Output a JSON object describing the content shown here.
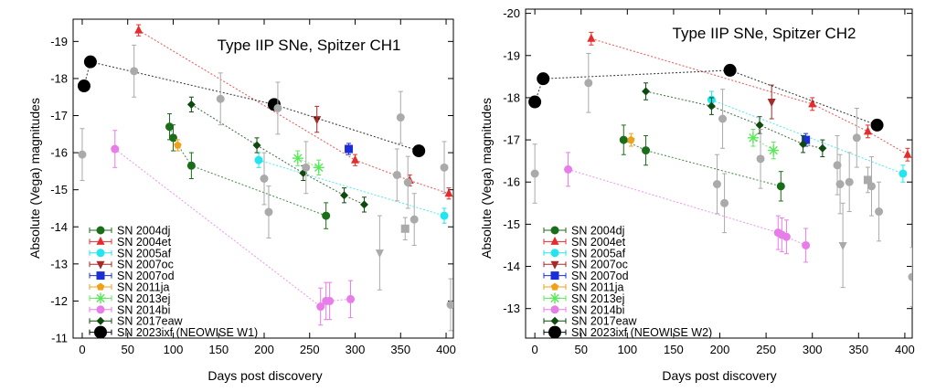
{
  "figure_title": "",
  "chart_data": [
    {
      "type": "scatter",
      "title": "Type IIP SNe, Spitzer CH1",
      "xlabel": "Days post discovery",
      "ylabel": "Absolute (Vega) magnitudes",
      "xlim": [
        -10,
        408
      ],
      "ylim": [
        -11,
        -19.6
      ],
      "xticks": [
        0,
        50,
        100,
        150,
        200,
        250,
        300,
        350,
        400
      ],
      "yticks": [
        -11,
        -12,
        -13,
        -14,
        -15,
        -16,
        -17,
        -18,
        -19
      ],
      "grid": false,
      "legend_position": "bottom-left",
      "legend": [
        {
          "label": "SN 2004dj",
          "color": "#1a6e1a",
          "marker": "circle"
        },
        {
          "label": "SN 2004et",
          "color": "#e52b2b",
          "marker": "triangle-up"
        },
        {
          "label": "SN 2005af",
          "color": "#22e5ef",
          "marker": "circle"
        },
        {
          "label": "SN 2007oc",
          "color": "#a52a2a",
          "marker": "triangle-down"
        },
        {
          "label": "SN 2007od",
          "color": "#1c2ed6",
          "marker": "square"
        },
        {
          "label": "SN 2011ja",
          "color": "#f0a11a",
          "marker": "pentagon"
        },
        {
          "label": "SN 2013ej",
          "color": "#59e859",
          "marker": "star"
        },
        {
          "label": "SN 2014bi",
          "color": "#e87ce8",
          "marker": "circle"
        },
        {
          "label": "SN 2017eaw",
          "color": "#0e4a0e",
          "marker": "diamond"
        },
        {
          "label": "SN 2023ixf (NEOWISE W1)",
          "color": "#000000",
          "marker": "circle-big"
        }
      ],
      "series": [
        {
          "name": "SN 2004dj",
          "color": "#1a6e1a",
          "marker": "circle",
          "points": [
            [
              96,
              -16.7
            ],
            [
              100,
              -16.4
            ],
            [
              120,
              -15.65
            ],
            [
              268,
              -14.3
            ]
          ],
          "yerr": 0.35
        },
        {
          "name": "SN 2004et",
          "color": "#e52b2b",
          "marker": "triangle-up",
          "points": [
            [
              62,
              -19.3
            ],
            [
              300,
              -15.8
            ],
            [
              360,
              -15.25
            ],
            [
              403,
              -14.9
            ]
          ],
          "yerr": 0.15
        },
        {
          "name": "SN 2005af",
          "color": "#22e5ef",
          "marker": "circle",
          "points": [
            [
              194,
              -15.8
            ],
            [
              398,
              -14.3
            ]
          ],
          "yerr": 0.2
        },
        {
          "name": "SN 2007oc",
          "color": "#a52a2a",
          "marker": "triangle-down",
          "points": [
            [
              258,
              -16.9
            ]
          ],
          "yerr": 0.35
        },
        {
          "name": "SN 2007od",
          "color": "#1c2ed6",
          "marker": "square",
          "points": [
            [
              293,
              -16.1
            ]
          ],
          "yerr": 0.15
        },
        {
          "name": "SN 2011ja",
          "color": "#f0a11a",
          "marker": "pentagon",
          "points": [
            [
              105,
              -16.2
            ]
          ],
          "yerr": 0.15
        },
        {
          "name": "SN 2013ej",
          "color": "#59e859",
          "marker": "star",
          "points": [
            [
              237,
              -15.85
            ],
            [
              260,
              -15.6
            ]
          ],
          "yerr": 0.2
        },
        {
          "name": "SN 2014bi",
          "color": "#e87ce8",
          "marker": "circle",
          "points": [
            [
              36,
              -16.1
            ],
            [
              262,
              -11.85
            ],
            [
              268,
              -12.0
            ],
            [
              272,
              -12.0
            ],
            [
              295,
              -12.05
            ]
          ],
          "yerr": 0.5
        },
        {
          "name": "SN 2017eaw",
          "color": "#0e4a0e",
          "marker": "diamond",
          "points": [
            [
              120,
              -17.3
            ],
            [
              192,
              -16.2
            ],
            [
              243,
              -15.45
            ],
            [
              288,
              -14.85
            ],
            [
              310,
              -14.6
            ]
          ],
          "yerr": 0.2
        },
        {
          "name": "SN 2023ixf (NEOWISE W1)",
          "color": "#000000",
          "marker": "circle-big",
          "points": [
            [
              2,
              -17.8
            ],
            [
              9,
              -18.45
            ],
            [
              211,
              -17.3
            ],
            [
              370,
              -16.05
            ]
          ],
          "yerr": 0
        },
        {
          "name": "",
          "color": "#aaaaaa",
          "marker": "circle",
          "points": [
            [
              0,
              -15.95
            ],
            [
              57,
              -18.2
            ],
            [
              152,
              -17.45
            ],
            [
              200,
              -15.3
            ],
            [
              205,
              -14.4
            ],
            [
              215,
              -17.2
            ],
            [
              246,
              -15.6
            ],
            [
              346,
              -15.4
            ],
            [
              350,
              -16.95
            ],
            [
              358,
              -15.2
            ],
            [
              365,
              -14.2
            ],
            [
              398,
              -15.6
            ],
            [
              405,
              -11.9
            ]
          ],
          "yerr": 0.7
        },
        {
          "name": "",
          "color": "#aaaaaa",
          "marker": "square",
          "points": [
            [
              355,
              -13.95
            ]
          ],
          "yerr": 0.3
        },
        {
          "name": "",
          "color": "#aaaaaa",
          "marker": "triangle-down",
          "points": [
            [
              327,
              -13.3
            ]
          ],
          "yerr": 1.0
        }
      ]
    },
    {
      "type": "scatter",
      "title": "Type IIP SNe, Spitzer CH2",
      "xlabel": "Days post discovery",
      "ylabel": "Absolute (Vega) magnitudes",
      "xlim": [
        -10,
        408
      ],
      "ylim": [
        -12.3,
        -20.1
      ],
      "xticks": [
        0,
        50,
        100,
        150,
        200,
        250,
        300,
        350,
        400
      ],
      "yticks": [
        -13,
        -14,
        -15,
        -16,
        -17,
        -18,
        -19,
        -20
      ],
      "grid": false,
      "legend_position": "bottom-left",
      "legend": [
        {
          "label": "SN 2004dj",
          "color": "#1a6e1a",
          "marker": "circle"
        },
        {
          "label": "SN 2004et",
          "color": "#e52b2b",
          "marker": "triangle-up"
        },
        {
          "label": "SN 2005af",
          "color": "#22e5ef",
          "marker": "circle"
        },
        {
          "label": "SN 2007oc",
          "color": "#a52a2a",
          "marker": "triangle-down"
        },
        {
          "label": "SN 2007od",
          "color": "#1c2ed6",
          "marker": "square"
        },
        {
          "label": "SN 2011ja",
          "color": "#f0a11a",
          "marker": "pentagon"
        },
        {
          "label": "SN 2013ej",
          "color": "#59e859",
          "marker": "star"
        },
        {
          "label": "SN 2014bi",
          "color": "#e87ce8",
          "marker": "circle"
        },
        {
          "label": "SN 2017eaw",
          "color": "#0e4a0e",
          "marker": "diamond"
        },
        {
          "label": "SN 2023ixf (NEOWISE W2)",
          "color": "#000000",
          "marker": "circle-big"
        }
      ],
      "series": [
        {
          "name": "SN 2004dj",
          "color": "#1a6e1a",
          "marker": "circle",
          "points": [
            [
              96,
              -17.0
            ],
            [
              120,
              -16.75
            ],
            [
              266,
              -15.9
            ]
          ],
          "yerr": 0.35
        },
        {
          "name": "SN 2004et",
          "color": "#e52b2b",
          "marker": "triangle-up",
          "points": [
            [
              61,
              -19.4
            ],
            [
              300,
              -17.85
            ],
            [
              360,
              -17.2
            ],
            [
              403,
              -16.65
            ]
          ],
          "yerr": 0.15
        },
        {
          "name": "SN 2005af",
          "color": "#22e5ef",
          "marker": "circle",
          "points": [
            [
              191,
              -17.95
            ],
            [
              398,
              -16.2
            ]
          ],
          "yerr": 0.2
        },
        {
          "name": "SN 2007oc",
          "color": "#a52a2a",
          "marker": "triangle-down",
          "points": [
            [
              256,
              -17.9
            ]
          ],
          "yerr": 0.4
        },
        {
          "name": "SN 2007od",
          "color": "#1c2ed6",
          "marker": "square",
          "points": [
            [
              293,
              -17.0
            ]
          ],
          "yerr": 0.15
        },
        {
          "name": "SN 2011ja",
          "color": "#f0a11a",
          "marker": "pentagon",
          "points": [
            [
              104,
              -17.0
            ]
          ],
          "yerr": 0.15
        },
        {
          "name": "SN 2013ej",
          "color": "#59e859",
          "marker": "star",
          "points": [
            [
              236,
              -17.05
            ],
            [
              258,
              -16.75
            ]
          ],
          "yerr": 0.2
        },
        {
          "name": "SN 2014bi",
          "color": "#e87ce8",
          "marker": "circle",
          "points": [
            [
              36,
              -16.3
            ],
            [
              263,
              -14.8
            ],
            [
              267,
              -14.75
            ],
            [
              272,
              -14.7
            ],
            [
              293,
              -14.5
            ]
          ],
          "yerr": 0.4
        },
        {
          "name": "SN 2017eaw",
          "color": "#0e4a0e",
          "marker": "diamond",
          "points": [
            [
              120,
              -18.15
            ],
            [
              191,
              -17.8
            ],
            [
              243,
              -17.35
            ],
            [
              290,
              -16.9
            ],
            [
              311,
              -16.8
            ]
          ],
          "yerr": 0.2
        },
        {
          "name": "SN 2023ixf (NEOWISE W2)",
          "color": "#000000",
          "marker": "circle-big",
          "points": [
            [
              0,
              -17.9
            ],
            [
              9,
              -18.45
            ],
            [
              211,
              -18.65
            ],
            [
              370,
              -17.35
            ]
          ],
          "yerr": 0
        },
        {
          "name": "",
          "color": "#aaaaaa",
          "marker": "circle",
          "points": [
            [
              0,
              -16.2
            ],
            [
              58,
              -18.35
            ],
            [
              197,
              -15.95
            ],
            [
              203,
              -17.5
            ],
            [
              205,
              -15.5
            ],
            [
              244,
              -16.55
            ],
            [
              327,
              -16.4
            ],
            [
              330,
              -15.95
            ],
            [
              340,
              -16.0
            ],
            [
              348,
              -17.05
            ],
            [
              364,
              -15.9
            ],
            [
              372,
              -15.3
            ],
            [
              408,
              -13.75
            ]
          ],
          "yerr": 0.7
        },
        {
          "name": "",
          "color": "#aaaaaa",
          "marker": "square",
          "points": [
            [
              360,
              -16.05
            ]
          ],
          "yerr": 0.3
        },
        {
          "name": "",
          "color": "#aaaaaa",
          "marker": "triangle-down",
          "points": [
            [
              333,
              -14.5
            ]
          ],
          "yerr": 1.0
        }
      ]
    }
  ]
}
